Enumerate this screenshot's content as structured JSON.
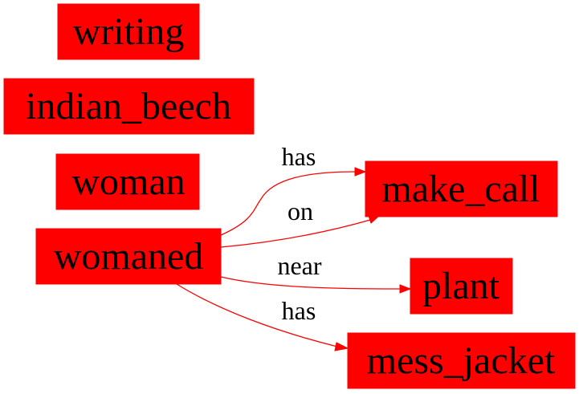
{
  "graph": {
    "nodes": [
      {
        "id": "writing",
        "label": "writing"
      },
      {
        "id": "indian_beech",
        "label": "indian_beech"
      },
      {
        "id": "woman",
        "label": "woman"
      },
      {
        "id": "womaned",
        "label": "womaned"
      },
      {
        "id": "make_call",
        "label": "make_call"
      },
      {
        "id": "plant",
        "label": "plant"
      },
      {
        "id": "mess_jacket",
        "label": "mess_jacket"
      }
    ],
    "edges": [
      {
        "from": "womaned",
        "to": "make_call",
        "label": "has"
      },
      {
        "from": "womaned",
        "to": "make_call",
        "label": "on"
      },
      {
        "from": "womaned",
        "to": "plant",
        "label": "near"
      },
      {
        "from": "womaned",
        "to": "mess_jacket",
        "label": "has"
      }
    ],
    "colors": {
      "node_fill": "#ff0000",
      "edge_color": "#ff0000",
      "text": "#000000"
    }
  }
}
